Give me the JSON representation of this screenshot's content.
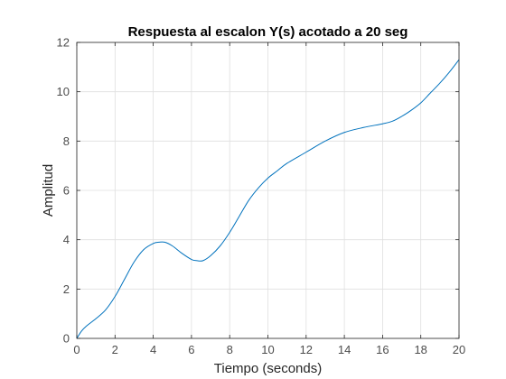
{
  "chart_data": {
    "type": "line",
    "title": "Respuesta al escalon Y(s) acotado a 20 seg",
    "xlabel": "Tiempo (seconds)",
    "ylabel": "Amplitud",
    "xlim": [
      0,
      20
    ],
    "ylim": [
      0,
      12
    ],
    "xticks": [
      0,
      2,
      4,
      6,
      8,
      10,
      12,
      14,
      16,
      18,
      20
    ],
    "yticks": [
      0,
      2,
      4,
      6,
      8,
      10,
      12
    ],
    "xtick_labels": [
      "0",
      "2",
      "4",
      "6",
      "8",
      "10",
      "12",
      "14",
      "16",
      "18",
      "20"
    ],
    "ytick_labels": [
      "0",
      "2",
      "4",
      "6",
      "8",
      "10",
      "12"
    ],
    "grid": true,
    "line_color": "#0072BD",
    "series": [
      {
        "x": [
          0,
          0.25,
          0.5,
          1,
          1.5,
          2,
          2.5,
          3,
          3.5,
          4,
          4.3,
          4.6,
          5,
          5.5,
          6,
          6.3,
          6.6,
          7,
          7.5,
          8,
          8.5,
          9,
          9.5,
          10,
          10.5,
          11,
          12,
          13,
          14,
          15,
          16,
          16.5,
          17,
          17.5,
          18,
          18.5,
          19,
          19.5,
          20
        ],
        "y": [
          0,
          0.3,
          0.5,
          0.8,
          1.15,
          1.7,
          2.4,
          3.1,
          3.6,
          3.85,
          3.9,
          3.9,
          3.75,
          3.45,
          3.2,
          3.15,
          3.15,
          3.35,
          3.75,
          4.3,
          4.95,
          5.6,
          6.1,
          6.5,
          6.8,
          7.1,
          7.55,
          8.0,
          8.35,
          8.55,
          8.7,
          8.8,
          9.0,
          9.25,
          9.55,
          9.95,
          10.35,
          10.8,
          11.3
        ]
      }
    ]
  }
}
